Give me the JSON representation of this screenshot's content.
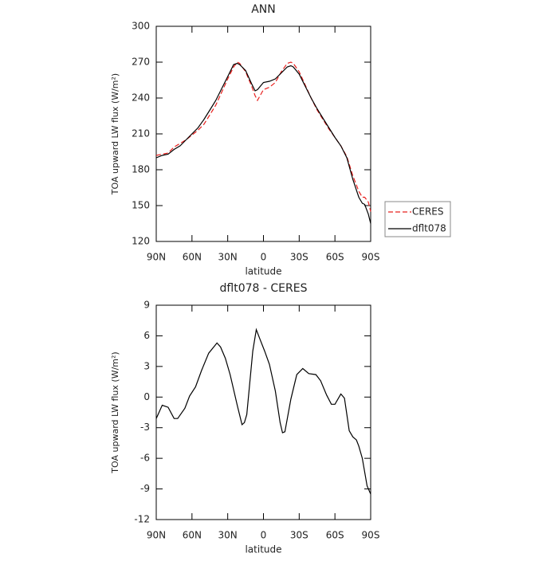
{
  "chart_data": [
    {
      "type": "line",
      "title": "ANN",
      "xlabel": "latitude",
      "ylabel": "TOA upward LW flux (W/m²)",
      "xlim": [
        90,
        -90
      ],
      "xticks": [
        {
          "value": 90,
          "label": "90N"
        },
        {
          "value": 60,
          "label": "60N"
        },
        {
          "value": 30,
          "label": "30N"
        },
        0,
        {
          "value": -30,
          "label": "30S"
        },
        {
          "value": -60,
          "label": "60S"
        },
        {
          "value": -90,
          "label": "90S"
        }
      ],
      "ylim": [
        120,
        300
      ],
      "yticks": [
        120,
        150,
        180,
        210,
        240,
        270,
        300
      ],
      "legend": "outside-right",
      "x": [
        90,
        85,
        80,
        75,
        70,
        65,
        60,
        55,
        50,
        45,
        40,
        35,
        30,
        25,
        22,
        20,
        15,
        10,
        7,
        5,
        0,
        -5,
        -10,
        -15,
        -20,
        -23,
        -25,
        -30,
        -35,
        -40,
        -45,
        -50,
        -55,
        -60,
        -65,
        -70,
        -75,
        -80,
        -83,
        -85,
        -88,
        -90
      ],
      "series": [
        {
          "name": "CERES",
          "color": "#e8201e",
          "style": "dashed",
          "values": [
            192,
            193,
            194,
            199,
            202,
            205,
            209,
            213,
            218,
            226,
            234,
            245,
            256,
            266,
            270,
            269,
            262,
            250,
            242,
            238,
            247,
            249,
            253,
            262,
            269,
            270,
            269,
            262,
            251,
            240,
            230,
            222,
            214,
            207,
            200,
            191,
            175,
            162,
            157,
            157,
            153,
            145
          ]
        },
        {
          "name": "dflt078",
          "color": "#000000",
          "style": "solid",
          "values": [
            190,
            192,
            193,
            197,
            200,
            205,
            210,
            215,
            222,
            230,
            238,
            248,
            258,
            268,
            269,
            268,
            263,
            252,
            246,
            247,
            253,
            254,
            256,
            261,
            266,
            267,
            266,
            260,
            250,
            240,
            231,
            223,
            215,
            207,
            200,
            190,
            172,
            157,
            152,
            151,
            143,
            135
          ]
        }
      ]
    },
    {
      "type": "line",
      "title": "dflt078 - CERES",
      "xlabel": "latitude",
      "ylabel": "TOA upward LW flux (W/m²)",
      "xlim": [
        90,
        -90
      ],
      "xticks": [
        {
          "value": 90,
          "label": "90N"
        },
        {
          "value": 60,
          "label": "60N"
        },
        {
          "value": 30,
          "label": "30N"
        },
        0,
        {
          "value": -30,
          "label": "30S"
        },
        {
          "value": -60,
          "label": "60S"
        },
        {
          "value": -90,
          "label": "90S"
        }
      ],
      "ylim": [
        -12,
        9
      ],
      "yticks": [
        -12,
        -9,
        -6,
        -3,
        0,
        3,
        6,
        9
      ],
      "color": "#000000",
      "x": [
        90,
        85,
        80,
        75,
        72,
        66,
        62,
        57,
        52,
        46,
        39,
        36,
        32,
        28,
        22,
        18,
        16,
        14,
        9,
        6,
        3,
        -1,
        -5,
        -10,
        -14,
        -16,
        -18,
        -23,
        -28,
        -33,
        -38,
        -44,
        -48,
        -53,
        -57,
        -60,
        -65,
        -68,
        -72,
        -75,
        -78,
        -80,
        -83,
        -87,
        -90
      ],
      "values": [
        -2.1,
        -0.8,
        -1,
        -2.1,
        -2.1,
        -1.1,
        0.1,
        1,
        2.6,
        4.3,
        5.3,
        4.9,
        3.8,
        2.2,
        -0.8,
        -2.7,
        -2.5,
        -1.7,
        4.5,
        6.6,
        5.7,
        4.5,
        3.2,
        0.6,
        -2.5,
        -3.5,
        -3.4,
        -0.2,
        2.2,
        2.8,
        2.3,
        2.2,
        1.6,
        0.2,
        -0.7,
        -0.7,
        0.3,
        -0.1,
        -3.3,
        -3.9,
        -4.2,
        -4.8,
        -6,
        -8.7,
        -9.5
      ]
    }
  ]
}
